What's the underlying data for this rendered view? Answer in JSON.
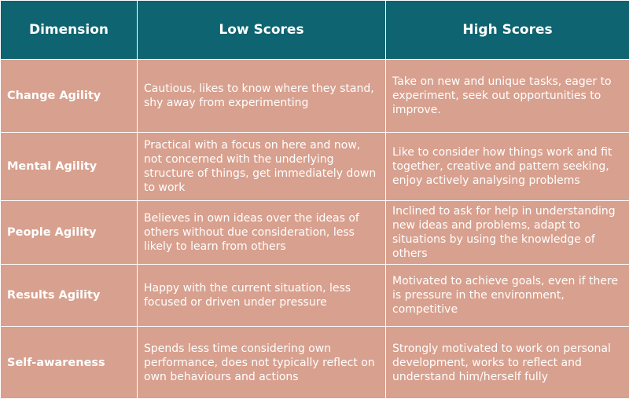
{
  "header": {
    "dimension": "Dimension",
    "low": "Low Scores",
    "high": "High Scores"
  },
  "rows": [
    {
      "dimension": "Change Agility",
      "low": "Cautious, likes to know where they stand, shy away from experimenting",
      "high": "Take on new and unique tasks, eager to experiment, seek out opportunities to improve."
    },
    {
      "dimension": "Mental Agility",
      "low": "Practical with a focus on here and now, not concerned with the underlying structure of things, get immediately down to work",
      "high": "Like to consider how things work and fit together, creative and pattern seeking, enjoy actively analysing problems"
    },
    {
      "dimension": "People Agility",
      "low": "Believes in own ideas over the ideas of others without due consideration, less likely to learn from others",
      "high": "Inclined to ask for help in understanding new ideas and problems, adapt to situations by using the knowledge of others"
    },
    {
      "dimension": "Results Agility",
      "low": "Happy with the current situation, less focused or driven under pressure",
      "high": "Motivated to achieve goals, even if there is pressure in the environment, competitive"
    },
    {
      "dimension": "Self-awareness",
      "low": "Spends less time considering own performance, does not typically reflect on own behaviours and actions",
      "high": "Strongly motivated to work on personal development, works to reflect and understand him/herself fully"
    }
  ],
  "colors": {
    "header_bg": "#0e6470",
    "cell_bg": "#d8a08e",
    "text": "#ffffff"
  }
}
